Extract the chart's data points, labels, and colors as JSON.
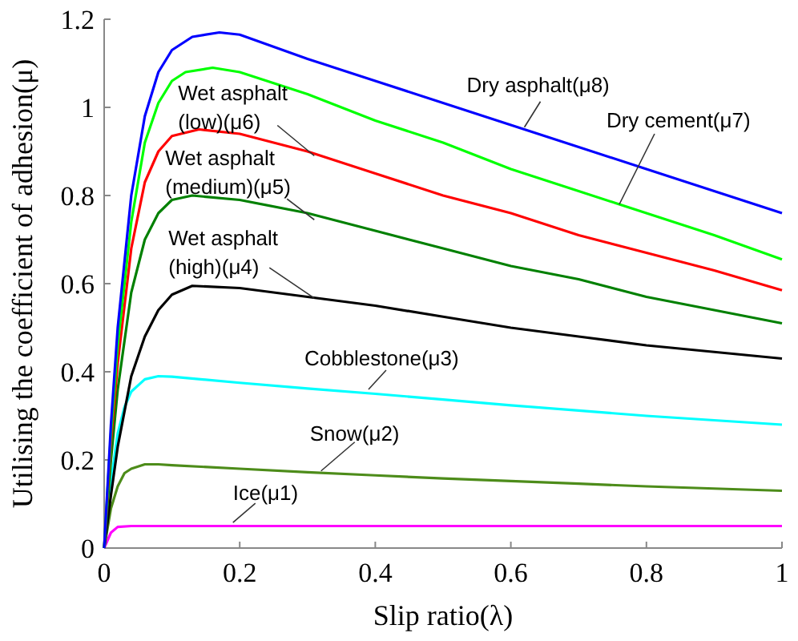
{
  "chart_data": {
    "type": "line",
    "xlabel": "Slip ratio(λ)",
    "ylabel": "Utilising the coefficient of adhesion(μ)",
    "xlim": [
      0,
      1
    ],
    "ylim": [
      0,
      1.2
    ],
    "xticks": [
      0,
      0.2,
      0.4,
      0.6,
      0.8,
      1
    ],
    "yticks": [
      0,
      0.2,
      0.4,
      0.6,
      0.8,
      1,
      1.2
    ],
    "marker": "none",
    "line_style": "solid",
    "series": [
      {
        "color": "#ff00ff",
        "x": [
          0,
          0.01,
          0.02,
          0.04,
          0.1,
          0.2,
          0.4,
          0.6,
          0.8,
          1
        ],
        "values": [
          0,
          0.035,
          0.048,
          0.05,
          0.05,
          0.05,
          0.05,
          0.05,
          0.05,
          0.05
        ]
      },
      {
        "color": "#4d8c1a",
        "x": [
          0,
          0.01,
          0.02,
          0.03,
          0.04,
          0.06,
          0.08,
          0.1,
          0.2,
          0.3,
          0.4,
          0.5,
          0.6,
          0.7,
          0.8,
          0.9,
          1
        ],
        "values": [
          0,
          0.09,
          0.14,
          0.17,
          0.18,
          0.19,
          0.19,
          0.188,
          0.18,
          0.172,
          0.165,
          0.158,
          0.152,
          0.146,
          0.14,
          0.135,
          0.13
        ]
      },
      {
        "color": "#00ffff",
        "x": [
          0,
          0.01,
          0.02,
          0.03,
          0.04,
          0.06,
          0.08,
          0.1,
          0.2,
          0.3,
          0.4,
          0.5,
          0.6,
          0.7,
          0.8,
          0.9,
          1
        ],
        "values": [
          0,
          0.15,
          0.26,
          0.32,
          0.355,
          0.383,
          0.39,
          0.389,
          0.375,
          0.362,
          0.35,
          0.337,
          0.324,
          0.312,
          0.3,
          0.29,
          0.28
        ]
      },
      {
        "color": "#000000",
        "x": [
          0,
          0.01,
          0.02,
          0.04,
          0.06,
          0.08,
          0.1,
          0.13,
          0.2,
          0.3,
          0.4,
          0.5,
          0.6,
          0.7,
          0.8,
          0.9,
          1
        ],
        "values": [
          0,
          0.12,
          0.23,
          0.39,
          0.48,
          0.54,
          0.575,
          0.595,
          0.59,
          0.57,
          0.55,
          0.525,
          0.5,
          0.48,
          0.46,
          0.445,
          0.43
        ]
      },
      {
        "color": "#008000",
        "x": [
          0,
          0.01,
          0.02,
          0.04,
          0.06,
          0.08,
          0.1,
          0.13,
          0.2,
          0.3,
          0.4,
          0.5,
          0.6,
          0.7,
          0.8,
          0.9,
          1
        ],
        "values": [
          0,
          0.2,
          0.36,
          0.58,
          0.7,
          0.76,
          0.79,
          0.8,
          0.79,
          0.76,
          0.72,
          0.68,
          0.64,
          0.61,
          0.57,
          0.54,
          0.51
        ]
      },
      {
        "color": "#ff0000",
        "x": [
          0,
          0.01,
          0.02,
          0.04,
          0.06,
          0.08,
          0.1,
          0.14,
          0.2,
          0.3,
          0.4,
          0.5,
          0.6,
          0.7,
          0.8,
          0.9,
          1
        ],
        "values": [
          0,
          0.24,
          0.42,
          0.68,
          0.83,
          0.9,
          0.935,
          0.95,
          0.94,
          0.9,
          0.85,
          0.8,
          0.76,
          0.71,
          0.67,
          0.63,
          0.585
        ]
      },
      {
        "color": "#00ff00",
        "x": [
          0,
          0.01,
          0.02,
          0.04,
          0.06,
          0.08,
          0.1,
          0.12,
          0.16,
          0.2,
          0.3,
          0.4,
          0.5,
          0.6,
          0.7,
          0.8,
          0.9,
          1
        ],
        "values": [
          0,
          0.26,
          0.46,
          0.74,
          0.92,
          1.01,
          1.06,
          1.08,
          1.09,
          1.08,
          1.03,
          0.97,
          0.92,
          0.86,
          0.81,
          0.76,
          0.71,
          0.655
        ]
      },
      {
        "color": "#0000ff",
        "x": [
          0,
          0.01,
          0.02,
          0.04,
          0.06,
          0.08,
          0.1,
          0.13,
          0.17,
          0.2,
          0.3,
          0.4,
          0.5,
          0.6,
          0.7,
          0.8,
          0.9,
          1
        ],
        "values": [
          0,
          0.28,
          0.5,
          0.8,
          0.98,
          1.08,
          1.13,
          1.16,
          1.17,
          1.165,
          1.11,
          1.06,
          1.01,
          0.96,
          0.91,
          0.86,
          0.81,
          0.76
        ]
      }
    ],
    "annotations": [
      {
        "text": "Dry asphalt(μ8)",
        "x": 0.62,
        "y": 0.955
      },
      {
        "text": "Dry cement(μ7)",
        "x": 0.76,
        "y": 0.78
      },
      {
        "text": "Wet asphalt\n(low)(μ6)",
        "x": 0.31,
        "y": 0.89
      },
      {
        "text": "Wet asphalt\n(medium)(μ5)",
        "x": 0.31,
        "y": 0.745
      },
      {
        "text": "Wet asphalt\n(high)(μ4)",
        "x": 0.31,
        "y": 0.567
      },
      {
        "text": "Cobblestone(μ3)",
        "x": 0.39,
        "y": 0.36
      },
      {
        "text": "Snow(μ2)",
        "x": 0.32,
        "y": 0.175
      },
      {
        "text": "Ice(μ1)",
        "x": 0.19,
        "y": 0.058
      }
    ]
  }
}
